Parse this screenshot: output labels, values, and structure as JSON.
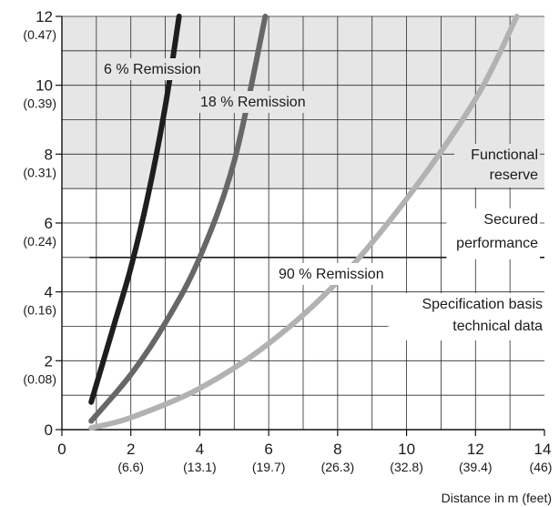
{
  "chart_data": {
    "type": "line",
    "xlabel": "Distance in m (feet)",
    "ylabel": "",
    "xlim": [
      0,
      14
    ],
    "ylim": [
      0,
      12
    ],
    "grid": true,
    "x_ticks": [
      {
        "value": 0,
        "label": "0",
        "sub": ""
      },
      {
        "value": 2,
        "label": "2",
        "sub": "(6.6)"
      },
      {
        "value": 4,
        "label": "4",
        "sub": "(13.1)"
      },
      {
        "value": 6,
        "label": "6",
        "sub": "(19.7)"
      },
      {
        "value": 8,
        "label": "8",
        "sub": "(26.3)"
      },
      {
        "value": 10,
        "label": "10",
        "sub": "(32.8)"
      },
      {
        "value": 12,
        "label": "12",
        "sub": "(39.4)"
      },
      {
        "value": 14,
        "label": "14",
        "sub": "(46)"
      }
    ],
    "y_ticks": [
      {
        "value": 0,
        "label": "0",
        "sub": ""
      },
      {
        "value": 2,
        "label": "2",
        "sub": "(0.08)"
      },
      {
        "value": 4,
        "label": "4",
        "sub": "(0.16)"
      },
      {
        "value": 6,
        "label": "6",
        "sub": "(0.24)"
      },
      {
        "value": 8,
        "label": "8",
        "sub": "(0.31)"
      },
      {
        "value": 10,
        "label": "10",
        "sub": "(0.39)"
      },
      {
        "value": 12,
        "label": "12",
        "sub": "(0.47)"
      }
    ],
    "regions": [
      {
        "name": "functional-reserve",
        "y_from": 7,
        "y_to": 12,
        "color": "#e6e6e6"
      }
    ],
    "reference_lines": [
      {
        "y": 5,
        "x_from": 0.8,
        "x_to": 14,
        "color": "#1a1a1a"
      }
    ],
    "series": [
      {
        "name": "6 % Remission",
        "color": "#1e1e1e",
        "points": [
          [
            0.85,
            0.8
          ],
          [
            1.5,
            3.0
          ],
          [
            2.0,
            4.7
          ],
          [
            2.5,
            6.8
          ],
          [
            3.0,
            9.4
          ],
          [
            3.4,
            12.0
          ]
        ]
      },
      {
        "name": "18 % Remission",
        "color": "#676767",
        "points": [
          [
            0.85,
            0.25
          ],
          [
            2.0,
            1.6
          ],
          [
            3.0,
            3.1
          ],
          [
            4.0,
            5.0
          ],
          [
            5.0,
            7.8
          ],
          [
            5.9,
            12.0
          ]
        ]
      },
      {
        "name": "90 % Remission",
        "color": "#b2b2b2",
        "points": [
          [
            0.85,
            0.05
          ],
          [
            2.0,
            0.35
          ],
          [
            4.0,
            1.2
          ],
          [
            6.0,
            2.5
          ],
          [
            8.0,
            4.3
          ],
          [
            10.0,
            6.7
          ],
          [
            12.0,
            9.6
          ],
          [
            13.2,
            12.0
          ]
        ]
      }
    ],
    "annotations": [
      {
        "key": "s6",
        "lines": [
          "6 % Remission"
        ]
      },
      {
        "key": "s18",
        "lines": [
          "18 % Remission"
        ]
      },
      {
        "key": "s90",
        "lines": [
          "90 % Remission"
        ]
      },
      {
        "key": "functional",
        "lines": [
          "Functional",
          "reserve"
        ]
      },
      {
        "key": "secured",
        "lines": [
          "Secured",
          "performance"
        ]
      },
      {
        "key": "spec",
        "lines": [
          "Specification basis",
          "technical data"
        ]
      }
    ]
  }
}
